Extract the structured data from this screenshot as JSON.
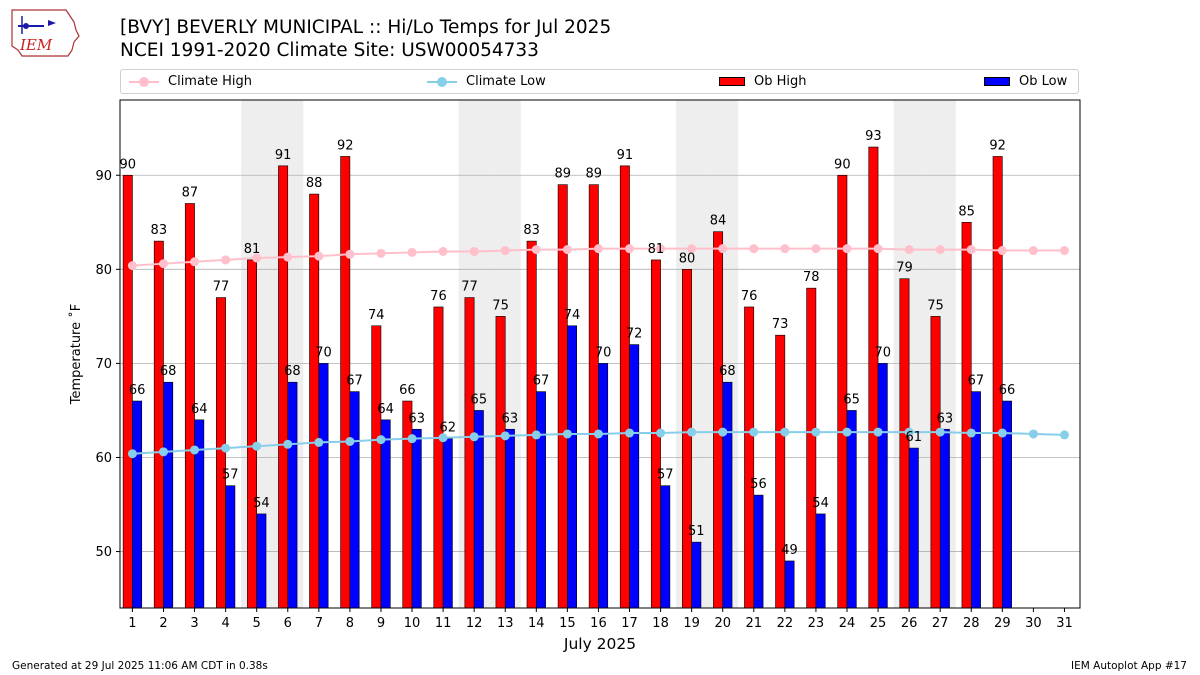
{
  "logo": {
    "text": "IEM"
  },
  "header": {
    "title_line1": "[BVY] BEVERLY MUNICIPAL :: Hi/Lo Temps for Jul 2025",
    "title_line2": "NCEI 1991-2020 Climate Site: USW00054733"
  },
  "legend": {
    "climate_high": "Climate High",
    "climate_low": "Climate Low",
    "ob_high": "Ob High",
    "ob_low": "Ob Low"
  },
  "colors": {
    "ob_high": "#ff0000",
    "ob_low": "#0000ff",
    "climate_high": "#ffc0cb",
    "climate_low": "#87ceeb",
    "weekend_shade": "#eeeeee",
    "grid": "#b0b0b0"
  },
  "chart_data": {
    "type": "bar",
    "xlabel": "July 2025",
    "ylabel": "Temperature ˚F",
    "ylim": [
      44,
      98
    ],
    "yticks": [
      50,
      60,
      70,
      80,
      90
    ],
    "grid": "horizontal",
    "legend_position": "top",
    "categories": [
      1,
      2,
      3,
      4,
      5,
      6,
      7,
      8,
      9,
      10,
      11,
      12,
      13,
      14,
      15,
      16,
      17,
      18,
      19,
      20,
      21,
      22,
      23,
      24,
      25,
      26,
      27,
      28,
      29,
      30,
      31
    ],
    "shaded_days": [
      5,
      6,
      12,
      13,
      19,
      20,
      26,
      27
    ],
    "series": [
      {
        "name": "Ob High",
        "kind": "bar",
        "values": [
          90,
          83,
          87,
          77,
          81,
          91,
          88,
          92,
          74,
          66,
          76,
          77,
          75,
          83,
          89,
          89,
          91,
          81,
          80,
          84,
          76,
          73,
          78,
          90,
          93,
          79,
          75,
          85,
          92,
          null,
          null
        ]
      },
      {
        "name": "Ob Low",
        "kind": "bar",
        "values": [
          66,
          68,
          64,
          57,
          54,
          68,
          70,
          67,
          64,
          63,
          62,
          65,
          63,
          67,
          74,
          70,
          72,
          57,
          51,
          68,
          56,
          49,
          54,
          65,
          70,
          61,
          63,
          67,
          66,
          null,
          null
        ]
      },
      {
        "name": "Climate High",
        "kind": "line",
        "values": [
          80.4,
          80.6,
          80.8,
          81.0,
          81.2,
          81.3,
          81.4,
          81.6,
          81.7,
          81.8,
          81.9,
          81.9,
          82.0,
          82.1,
          82.1,
          82.2,
          82.2,
          82.2,
          82.2,
          82.2,
          82.2,
          82.2,
          82.2,
          82.2,
          82.2,
          82.1,
          82.1,
          82.1,
          82.0,
          82.0,
          82.0
        ]
      },
      {
        "name": "Climate Low",
        "kind": "line",
        "values": [
          60.4,
          60.6,
          60.8,
          61.0,
          61.2,
          61.4,
          61.6,
          61.7,
          61.9,
          62.0,
          62.1,
          62.2,
          62.3,
          62.4,
          62.5,
          62.5,
          62.6,
          62.6,
          62.7,
          62.7,
          62.7,
          62.7,
          62.7,
          62.7,
          62.7,
          62.7,
          62.7,
          62.6,
          62.6,
          62.5,
          62.4
        ]
      }
    ]
  },
  "footer": {
    "left": "Generated at 29 Jul 2025 11:06 AM CDT in 0.38s",
    "right": "IEM Autoplot App #17"
  }
}
